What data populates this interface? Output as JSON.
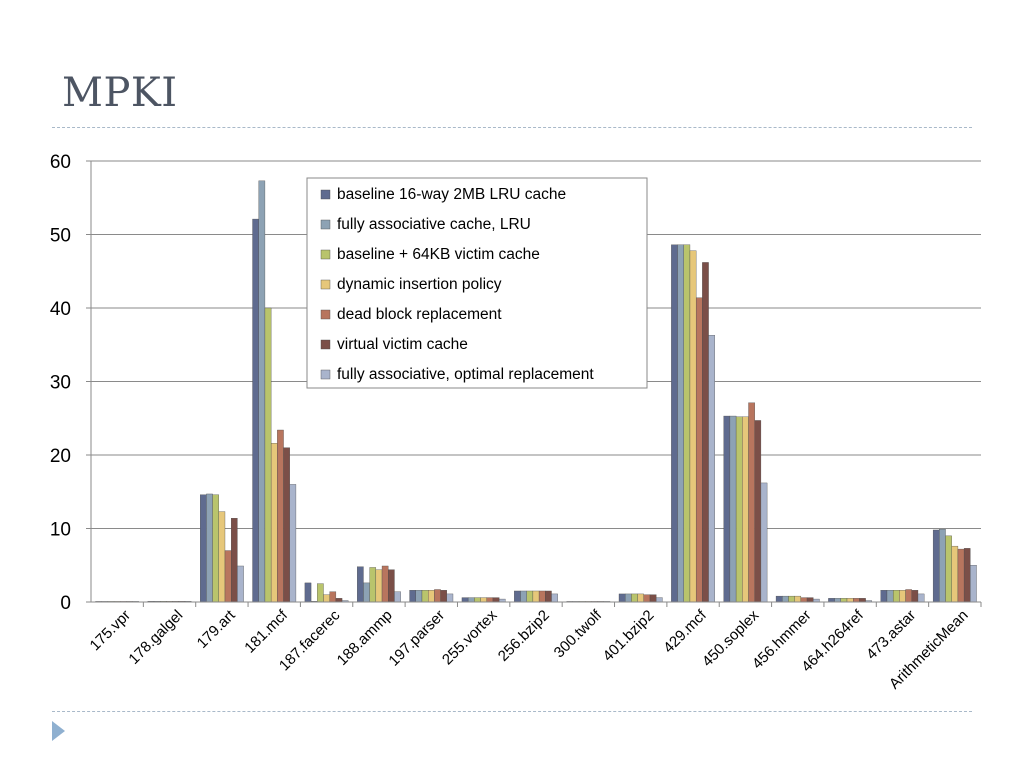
{
  "slide": {
    "title": "MPKI"
  },
  "chart_data": {
    "type": "bar",
    "title": "",
    "xlabel": "",
    "ylabel": "",
    "ylim": [
      0,
      60
    ],
    "yticks": [
      0,
      10,
      20,
      30,
      40,
      50,
      60
    ],
    "grid": true,
    "legend_position": "top-center",
    "categories": [
      "175.vpr",
      "178.galgel",
      "179.art",
      "181.mcf",
      "187.facerec",
      "188.ammp",
      "197.parser",
      "255.vortex",
      "256.bzip2",
      "300.twolf",
      "401.bzip2",
      "429.mcf",
      "450.soplex",
      "456.hmmer",
      "464.h264ref",
      "473.astar",
      "ArithmeticMean"
    ],
    "series": [
      {
        "name": "baseline 16-way 2MB LRU cache",
        "color": "#5f6b8f",
        "values": [
          0.05,
          0.1,
          14.6,
          52.1,
          2.6,
          4.8,
          1.6,
          0.6,
          1.5,
          0.05,
          1.1,
          48.6,
          25.3,
          0.8,
          0.5,
          1.6,
          9.8
        ]
      },
      {
        "name": "fully associative cache, LRU",
        "color": "#8da2b4",
        "values": [
          0.05,
          0.1,
          14.7,
          57.3,
          0.1,
          2.6,
          1.6,
          0.6,
          1.5,
          0.05,
          1.1,
          48.6,
          25.3,
          0.8,
          0.5,
          1.6,
          9.9
        ]
      },
      {
        "name": "baseline + 64KB victim cache",
        "color": "#b9c46c",
        "values": [
          0.05,
          0.1,
          14.6,
          40.0,
          2.5,
          4.7,
          1.6,
          0.6,
          1.5,
          0.05,
          1.1,
          48.6,
          25.2,
          0.8,
          0.5,
          1.6,
          9.0
        ]
      },
      {
        "name": "dynamic insertion policy",
        "color": "#e6c77a",
        "values": [
          0.05,
          0.1,
          12.3,
          21.6,
          1.0,
          4.4,
          1.6,
          0.6,
          1.5,
          0.05,
          1.1,
          47.8,
          25.2,
          0.8,
          0.5,
          1.6,
          7.6
        ]
      },
      {
        "name": "dead block replacement",
        "color": "#b8755e",
        "values": [
          0.05,
          0.1,
          7.0,
          23.4,
          1.4,
          4.9,
          1.7,
          0.6,
          1.5,
          0.05,
          1.0,
          41.4,
          27.1,
          0.6,
          0.5,
          1.7,
          7.2
        ]
      },
      {
        "name": "virtual victim cache",
        "color": "#7b4f48",
        "values": [
          0.05,
          0.1,
          11.4,
          21.0,
          0.5,
          4.4,
          1.6,
          0.6,
          1.5,
          0.05,
          1.0,
          46.2,
          24.7,
          0.6,
          0.5,
          1.6,
          7.3
        ]
      },
      {
        "name": "fully associative, optimal replacement",
        "color": "#a9b4cc",
        "values": [
          0.05,
          0.1,
          4.9,
          16.0,
          0.2,
          1.4,
          1.1,
          0.4,
          1.1,
          0.05,
          0.6,
          36.3,
          16.2,
          0.4,
          0.2,
          1.1,
          5.0
        ]
      }
    ]
  }
}
